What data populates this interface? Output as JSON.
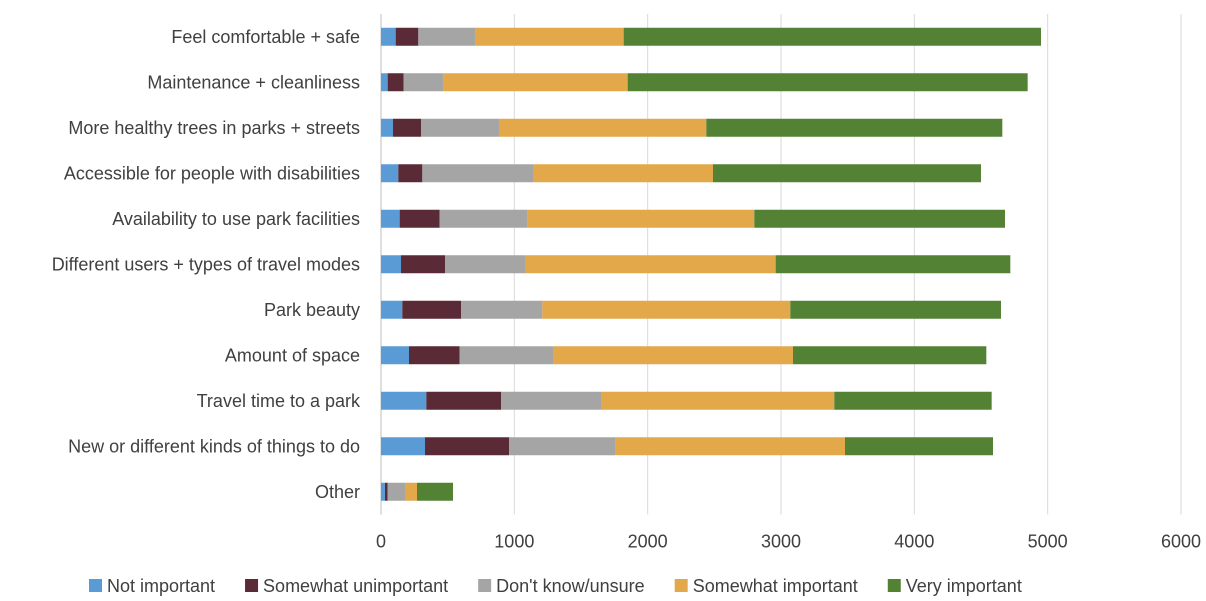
{
  "chart_data": {
    "type": "bar",
    "orientation": "horizontal",
    "stacked": true,
    "title": "",
    "xlabel": "",
    "ylabel": "",
    "xlim": [
      0,
      6000
    ],
    "xticks": [
      0,
      1000,
      2000,
      3000,
      4000,
      5000,
      6000
    ],
    "grid": "vertical",
    "legend": "bottom",
    "categories": [
      "Feel comfortable + safe",
      "Maintenance + cleanliness",
      "More healthy trees in parks + streets",
      "Accessible for people with disabilities",
      "Availability to use park facilities",
      "Different users + types of travel modes",
      "Park beauty",
      "Amount of space",
      "Travel time to a park",
      "New or different kinds of things to do",
      "Other"
    ],
    "series": [
      {
        "name": "Not important",
        "color": "#5b9bd5",
        "values": [
          110,
          50,
          90,
          130,
          140,
          150,
          160,
          210,
          340,
          330,
          30
        ]
      },
      {
        "name": "Somewhat unimportant",
        "color": "#5a2a37",
        "values": [
          170,
          120,
          210,
          180,
          300,
          330,
          440,
          380,
          560,
          630,
          20
        ]
      },
      {
        "name": "Don't know/unsure",
        "color": "#a5a5a5",
        "values": [
          430,
          300,
          590,
          830,
          660,
          600,
          610,
          700,
          750,
          800,
          130
        ]
      },
      {
        "name": "Somewhat important",
        "color": "#e2a84a",
        "values": [
          1110,
          1380,
          1550,
          1350,
          1700,
          1880,
          1860,
          1800,
          1750,
          1720,
          90
        ]
      },
      {
        "name": "Very important",
        "color": "#548235",
        "values": [
          3130,
          3000,
          2220,
          2010,
          1880,
          1760,
          1580,
          1450,
          1180,
          1110,
          270
        ]
      }
    ]
  }
}
